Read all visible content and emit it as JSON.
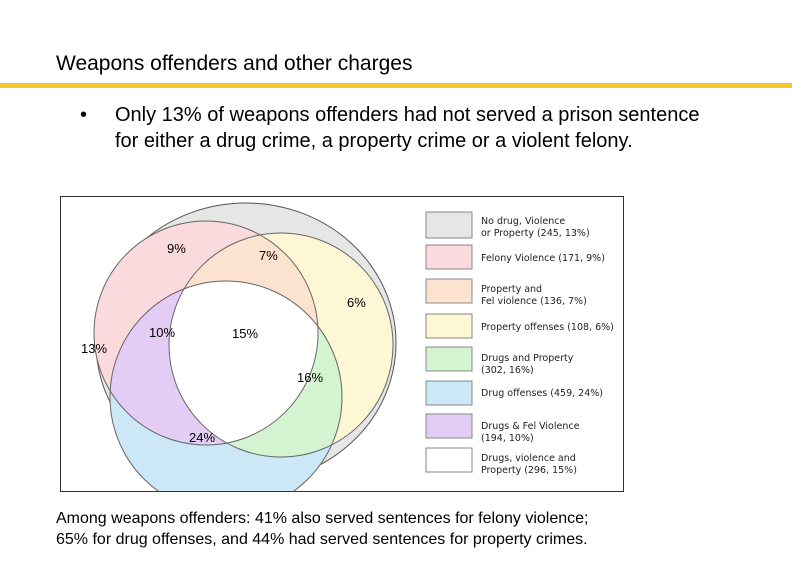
{
  "slide": {
    "title": "Weapons offenders and other charges",
    "bullet_marker": "•",
    "bullet_text": "Only 13% of weapons offenders had not served a prison sentence for either a drug crime, a property crime or a violent felony.",
    "caption_line1": "Among weapons offenders:  41%  also served sentences for felony violence;",
    "caption_line2": "65% for drug offenses, and 44% had served sentences for property crimes."
  },
  "diagram": {
    "regions": {
      "none": "13%",
      "felony_only": "9%",
      "felony_property": "7%",
      "property_only": "6%",
      "drugs_felony": "10%",
      "all_three": "15%",
      "drugs_property": "16%",
      "drugs_only": "24%"
    },
    "colors": {
      "none": "#e6e6e6",
      "felony": "#fadadd",
      "felony_property": "#fbe3cf",
      "property": "#fdf7d6",
      "drugs_property": "#d4f3d0",
      "drugs": "#cce7f5",
      "drugs_felony": "#e3cdf5",
      "all_three": "#ffffff"
    },
    "legend": [
      {
        "line1": "No drug, Violence",
        "line2": "or Property (245, 13%)",
        "color": "#e6e6e6"
      },
      {
        "line1": "Felony Violence   (171, 9%)",
        "line2": "",
        "color": "#fadadd"
      },
      {
        "line1": "Property and",
        "line2": "Fel violence (136, 7%)",
        "color": "#fbe3cf"
      },
      {
        "line1": "Property offenses (108, 6%)",
        "line2": "",
        "color": "#fdf7d6"
      },
      {
        "line1": "Drugs and Property",
        "line2": "(302, 16%)",
        "color": "#d4f3d0"
      },
      {
        "line1": "Drug offenses (459, 24%)",
        "line2": "",
        "color": "#cce7f5"
      },
      {
        "line1": "Drugs & Fel Violence",
        "line2": "(194, 10%)",
        "color": "#e3cdf5"
      },
      {
        "line1": "Drugs, violence and",
        "line2": "Property (296, 15%)",
        "color": "#ffffff"
      }
    ]
  }
}
